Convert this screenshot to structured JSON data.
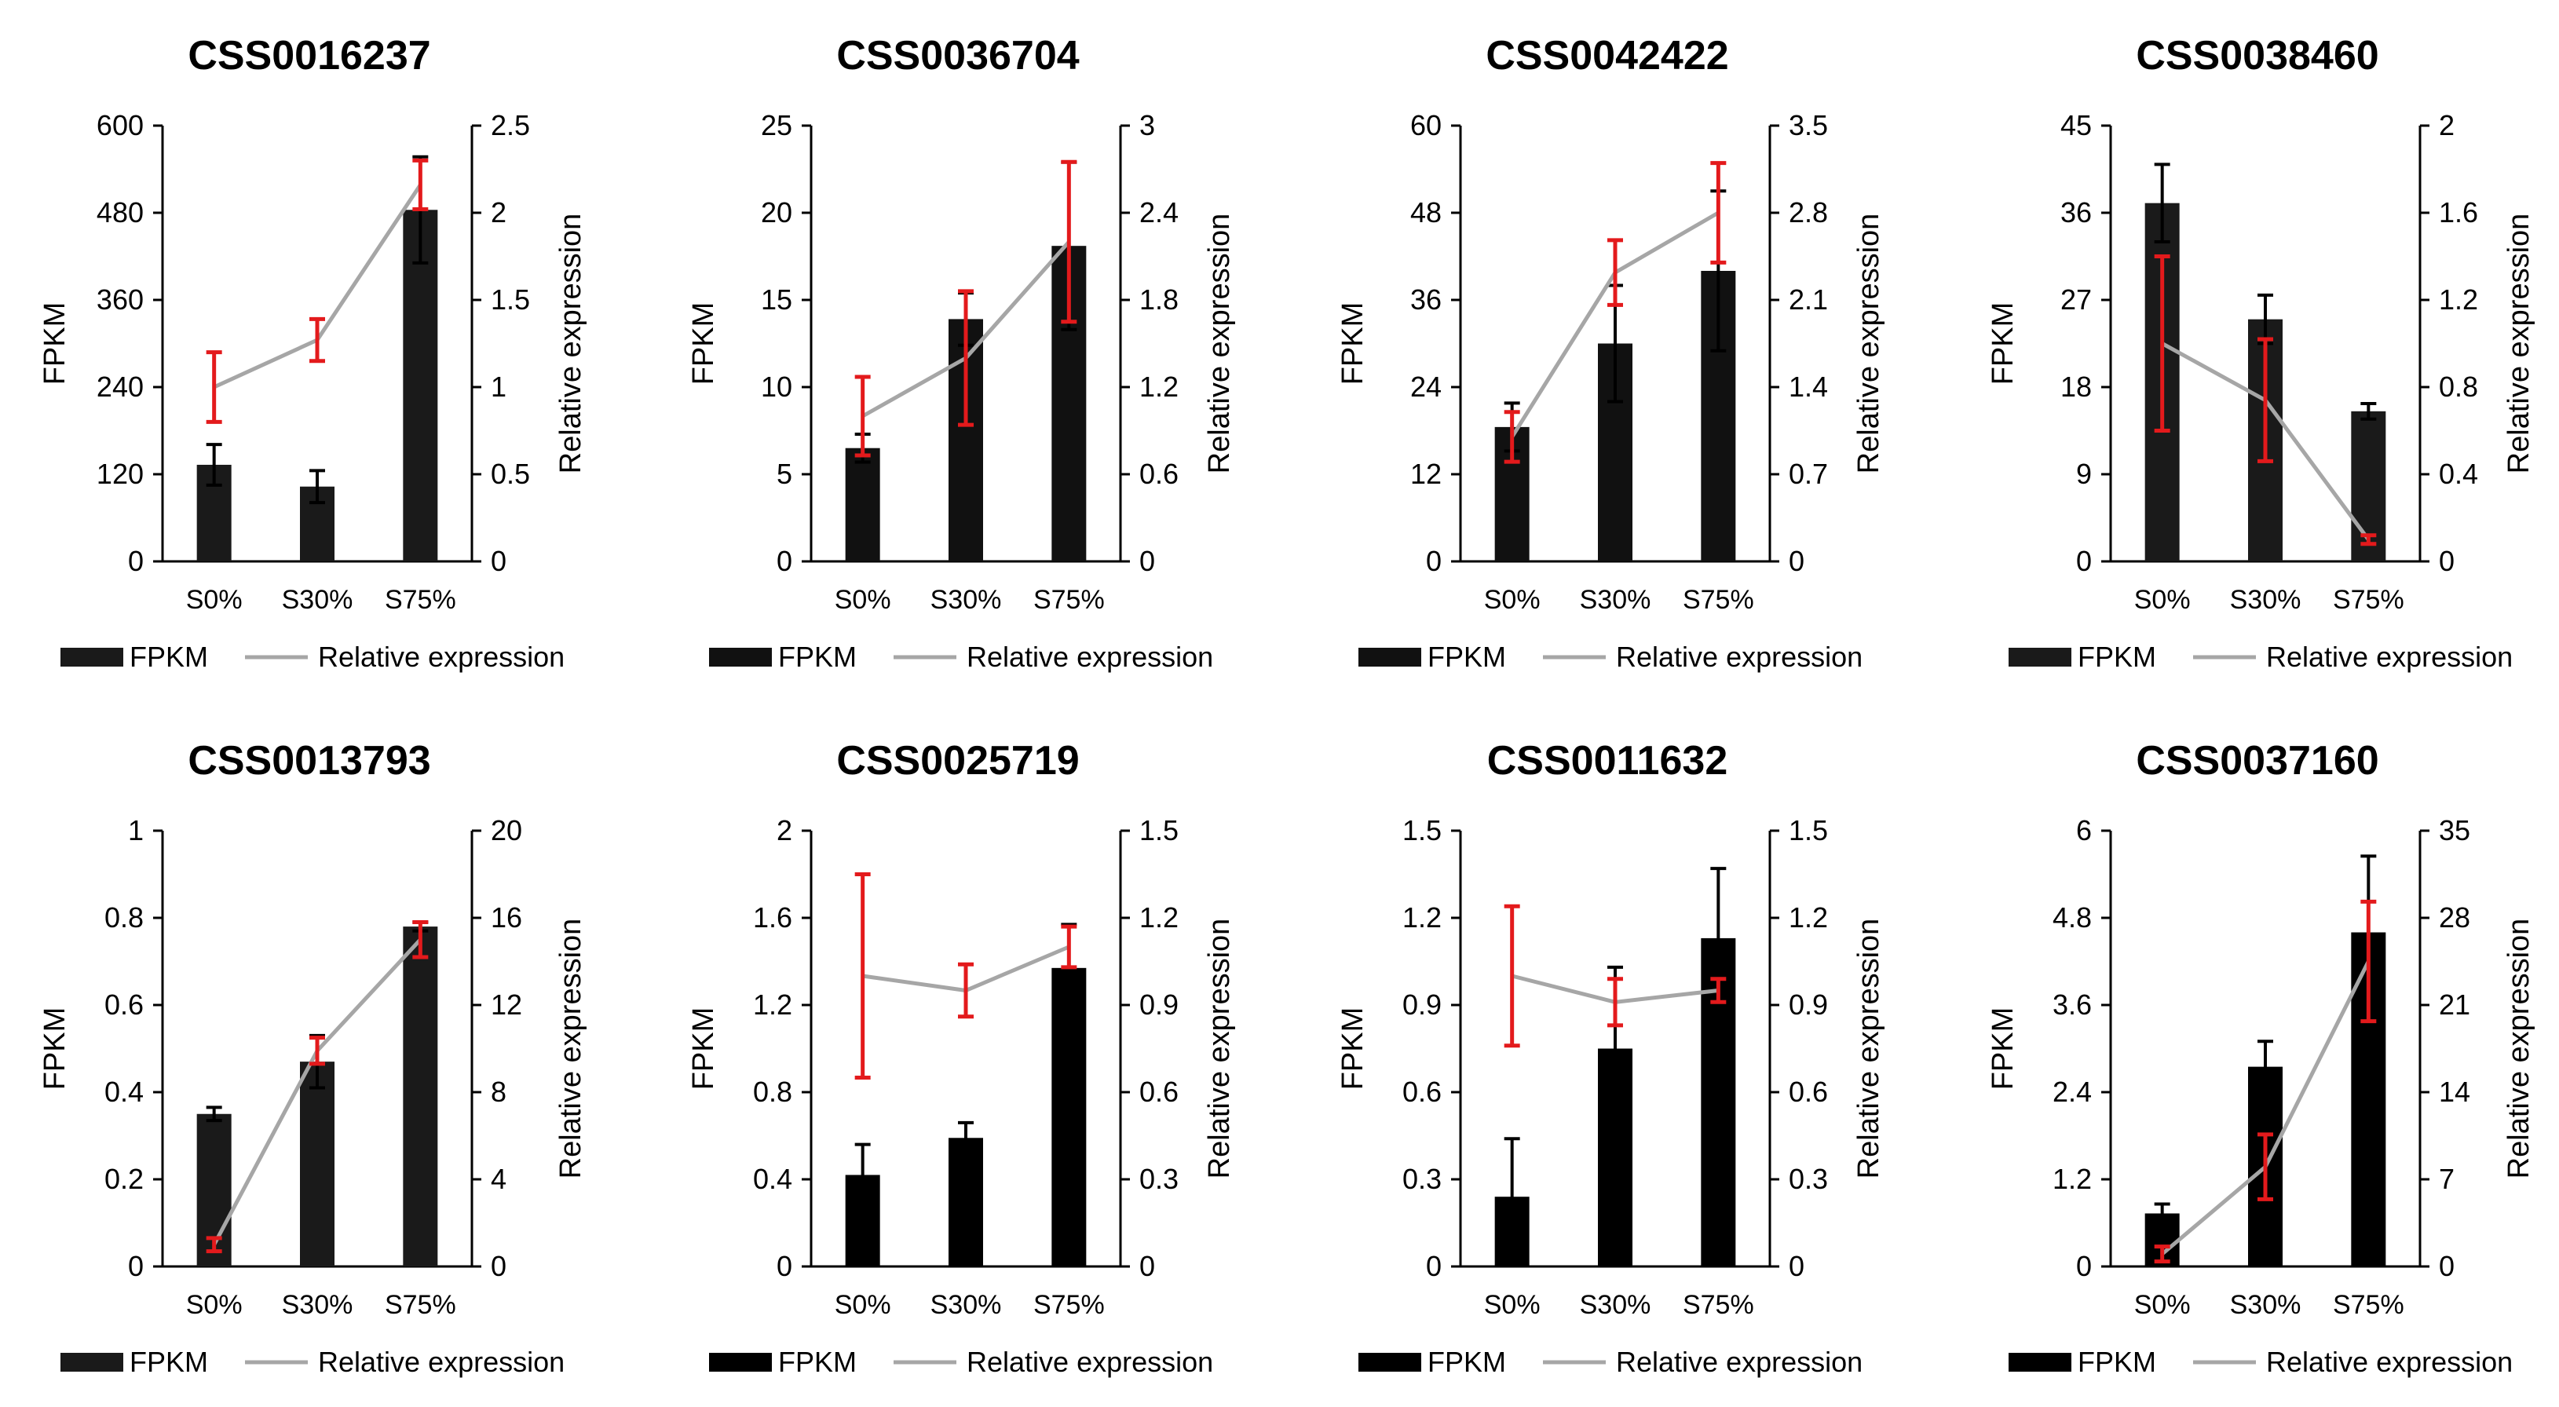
{
  "chart_data": [
    {
      "type": "bar",
      "title": "CSS0016237",
      "categories": [
        "S0%",
        "S30%",
        "S75%"
      ],
      "ylabel": "FPKM",
      "y2label": "Relative expression",
      "ylim": [
        0,
        600
      ],
      "yticks": [
        "0",
        "120",
        "240",
        "360",
        "480",
        "600"
      ],
      "y2lim": [
        0,
        2.5
      ],
      "y2ticks": [
        "0",
        "0.5",
        "1",
        "1.5",
        "2",
        "2.5"
      ],
      "bar_color": "#1a1a1a",
      "series": [
        {
          "name": "FPKM",
          "axis": "left",
          "kind": "bar",
          "values": [
            133,
            103,
            484
          ],
          "errors": [
            28,
            22,
            73
          ]
        },
        {
          "name": "Relative expression",
          "axis": "right",
          "kind": "line",
          "values": [
            1.0,
            1.27,
            2.16
          ],
          "errors": [
            0.2,
            0.12,
            0.14
          ]
        }
      ],
      "legend": [
        "FPKM",
        "Relative expression"
      ],
      "legend_position": "bottom"
    },
    {
      "type": "bar",
      "title": "CSS0036704",
      "categories": [
        "S0%",
        "S30%",
        "S75%"
      ],
      "ylabel": "FPKM",
      "y2label": "Relative expression",
      "ylim": [
        0,
        25
      ],
      "yticks": [
        "0",
        "5",
        "10",
        "15",
        "20",
        "25"
      ],
      "y2lim": [
        0,
        3
      ],
      "y2ticks": [
        "0",
        "0.6",
        "1.2",
        "1.8",
        "2.4",
        "3"
      ],
      "bar_color": "#111111",
      "series": [
        {
          "name": "FPKM",
          "axis": "left",
          "kind": "bar",
          "values": [
            6.5,
            13.9,
            18.1
          ],
          "errors": [
            0.8,
            1.5,
            4.8
          ]
        },
        {
          "name": "Relative expression",
          "axis": "right",
          "kind": "line",
          "values": [
            1.0,
            1.4,
            2.2
          ],
          "errors": [
            0.27,
            0.46,
            0.55
          ]
        }
      ],
      "legend": [
        "FPKM",
        "Relative expression"
      ],
      "legend_position": "bottom"
    },
    {
      "type": "bar",
      "title": "CSS0042422",
      "categories": [
        "S0%",
        "S30%",
        "S75%"
      ],
      "ylabel": "FPKM",
      "y2label": "Relative expression",
      "ylim": [
        0,
        60
      ],
      "yticks": [
        "0",
        "12",
        "24",
        "36",
        "48",
        "60"
      ],
      "y2lim": [
        0,
        3.5
      ],
      "y2ticks": [
        "0",
        "0.7",
        "1.4",
        "2.1",
        "2.8",
        "3.5"
      ],
      "bar_color": "#111111",
      "series": [
        {
          "name": "FPKM",
          "axis": "left",
          "kind": "bar",
          "values": [
            18.5,
            30,
            40
          ],
          "errors": [
            3.3,
            8,
            11
          ]
        },
        {
          "name": "Relative expression",
          "axis": "right",
          "kind": "line",
          "values": [
            1.0,
            2.32,
            2.8
          ],
          "errors": [
            0.2,
            0.26,
            0.4
          ]
        }
      ],
      "legend": [
        "FPKM",
        "Relative expression"
      ],
      "legend_position": "bottom"
    },
    {
      "type": "bar",
      "title": "CSS0038460",
      "categories": [
        "S0%",
        "S30%",
        "S75%"
      ],
      "ylabel": "FPKM",
      "y2label": "Relative expression",
      "ylim": [
        0,
        45
      ],
      "yticks": [
        "0",
        "9",
        "18",
        "27",
        "36",
        "45"
      ],
      "y2lim": [
        0,
        2
      ],
      "y2ticks": [
        "0",
        "0.4",
        "0.8",
        "1.2",
        "1.6",
        "2"
      ],
      "bar_color": "#1a1a1a",
      "series": [
        {
          "name": "FPKM",
          "axis": "left",
          "kind": "bar",
          "values": [
            37,
            25,
            15.5
          ],
          "errors": [
            4,
            2.5,
            0.8
          ]
        },
        {
          "name": "Relative expression",
          "axis": "right",
          "kind": "line",
          "values": [
            1.0,
            0.74,
            0.1
          ],
          "errors": [
            0.4,
            0.28,
            0.02
          ]
        }
      ],
      "legend": [
        "FPKM",
        "Relative expression"
      ],
      "legend_position": "bottom"
    },
    {
      "type": "bar",
      "title": "CSS0013793",
      "categories": [
        "S0%",
        "S30%",
        "S75%"
      ],
      "ylabel": "FPKM",
      "y2label": "Relative expression",
      "ylim": [
        0,
        1
      ],
      "yticks": [
        "0",
        "0.2",
        "0.4",
        "0.6",
        "0.8",
        "1"
      ],
      "y2lim": [
        0,
        20
      ],
      "y2ticks": [
        "0",
        "4",
        "8",
        "12",
        "16",
        "20"
      ],
      "bar_color": "#1a1a1a",
      "series": [
        {
          "name": "FPKM",
          "axis": "left",
          "kind": "bar",
          "values": [
            0.35,
            0.47,
            0.78
          ],
          "errors": [
            0.015,
            0.06,
            0.01
          ]
        },
        {
          "name": "Relative expression",
          "axis": "right",
          "kind": "line",
          "values": [
            1.0,
            9.9,
            15
          ],
          "errors": [
            0.3,
            0.6,
            0.8
          ]
        }
      ],
      "legend": [
        "FPKM",
        "Relative expression"
      ],
      "legend_position": "bottom"
    },
    {
      "type": "bar",
      "title": "CSS0025719",
      "categories": [
        "S0%",
        "S30%",
        "S75%"
      ],
      "ylabel": "FPKM",
      "y2label": "Relative expression",
      "ylim": [
        0,
        2
      ],
      "yticks": [
        "0",
        "0.4",
        "0.8",
        "1.2",
        "1.6",
        "2"
      ],
      "y2lim": [
        0,
        1.5
      ],
      "y2ticks": [
        "0",
        "0.3",
        "0.6",
        "0.9",
        "1.2",
        "1.5"
      ],
      "bar_color": "#000000",
      "series": [
        {
          "name": "FPKM",
          "axis": "left",
          "kind": "bar",
          "values": [
            0.42,
            0.59,
            1.37
          ],
          "errors": [
            0.14,
            0.07,
            0.2
          ]
        },
        {
          "name": "Relative expression",
          "axis": "right",
          "kind": "line",
          "values": [
            1.0,
            0.95,
            1.1
          ],
          "errors": [
            0.35,
            0.09,
            0.07
          ]
        }
      ],
      "legend": [
        "FPKM",
        "Relative expression"
      ],
      "legend_position": "bottom"
    },
    {
      "type": "bar",
      "title": "CSS0011632",
      "categories": [
        "S0%",
        "S30%",
        "S75%"
      ],
      "ylabel": "FPKM",
      "y2label": "Relative expression",
      "ylim": [
        0,
        1.5
      ],
      "yticks": [
        "0",
        "0.3",
        "0.6",
        "0.9",
        "1.2",
        "1.5"
      ],
      "y2lim": [
        0,
        1.5
      ],
      "y2ticks": [
        "0",
        "0.3",
        "0.6",
        "0.9",
        "1.2",
        "1.5"
      ],
      "bar_color": "#000000",
      "series": [
        {
          "name": "FPKM",
          "axis": "left",
          "kind": "bar",
          "values": [
            0.24,
            0.75,
            1.13
          ],
          "errors": [
            0.2,
            0.28,
            0.24
          ]
        },
        {
          "name": "Relative expression",
          "axis": "right",
          "kind": "line",
          "values": [
            1.0,
            0.91,
            0.95
          ],
          "errors": [
            0.24,
            0.08,
            0.04
          ]
        }
      ],
      "legend": [
        "FPKM",
        "Relative expression"
      ],
      "legend_position": "bottom"
    },
    {
      "type": "bar",
      "title": "CSS0037160",
      "categories": [
        "S0%",
        "S30%",
        "S75%"
      ],
      "ylabel": "FPKM",
      "y2label": "Relative expression",
      "ylim": [
        0,
        6
      ],
      "yticks": [
        "0",
        "1.2",
        "2.4",
        "3.6",
        "4.8",
        "6"
      ],
      "y2lim": [
        0,
        35
      ],
      "y2ticks": [
        "0",
        "7",
        "14",
        "21",
        "28",
        "35"
      ],
      "bar_color": "#000000",
      "series": [
        {
          "name": "FPKM",
          "axis": "left",
          "kind": "bar",
          "values": [
            0.73,
            2.75,
            4.6
          ],
          "errors": [
            0.13,
            0.35,
            1.05
          ]
        },
        {
          "name": "Relative expression",
          "axis": "right",
          "kind": "line",
          "values": [
            1.0,
            8,
            24.5
          ],
          "errors": [
            0.6,
            2.6,
            4.8
          ]
        }
      ],
      "legend": [
        "FPKM",
        "Relative expression"
      ],
      "legend_position": "bottom"
    }
  ],
  "colors": {
    "line": "#a6a6a6",
    "line_error": "#e31a1c",
    "bar_error": "#000000",
    "axis": "#000000"
  }
}
